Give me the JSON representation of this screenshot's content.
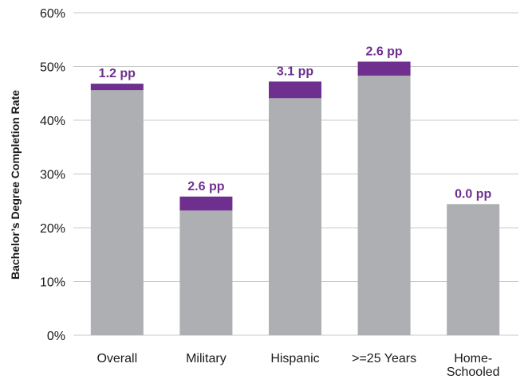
{
  "chart_data": {
    "type": "bar",
    "stacked": true,
    "ylabel": "Bachelor’s Degree Completion Rate",
    "xlabel": "",
    "ylim": [
      0,
      60
    ],
    "yticks": [
      0,
      10,
      20,
      30,
      40,
      50,
      60
    ],
    "ytick_labels": [
      "0%",
      "10%",
      "20%",
      "30%",
      "40%",
      "50%",
      "60%"
    ],
    "grid": true,
    "categories": [
      [
        "Overall"
      ],
      [
        "Military"
      ],
      [
        "Hispanic"
      ],
      [
        ">=25 Years"
      ],
      [
        "Home-",
        "Schooled"
      ]
    ],
    "series": [
      {
        "values": [
          45.6,
          23.2,
          44.1,
          48.3,
          24.4
        ],
        "color": "#aeafb3"
      },
      {
        "values": [
          1.2,
          2.6,
          3.1,
          2.6,
          0.0
        ],
        "color": "#6e2f8f"
      }
    ],
    "data_labels": [
      "1.2 pp",
      "2.6 pp",
      "3.1 pp",
      "2.6 pp",
      "0.0 pp"
    ],
    "colors": {
      "base": "#aeafb3",
      "gain": "#6e2f8f",
      "label": "#6e2f8f",
      "grid": "#c8c8c8"
    }
  }
}
